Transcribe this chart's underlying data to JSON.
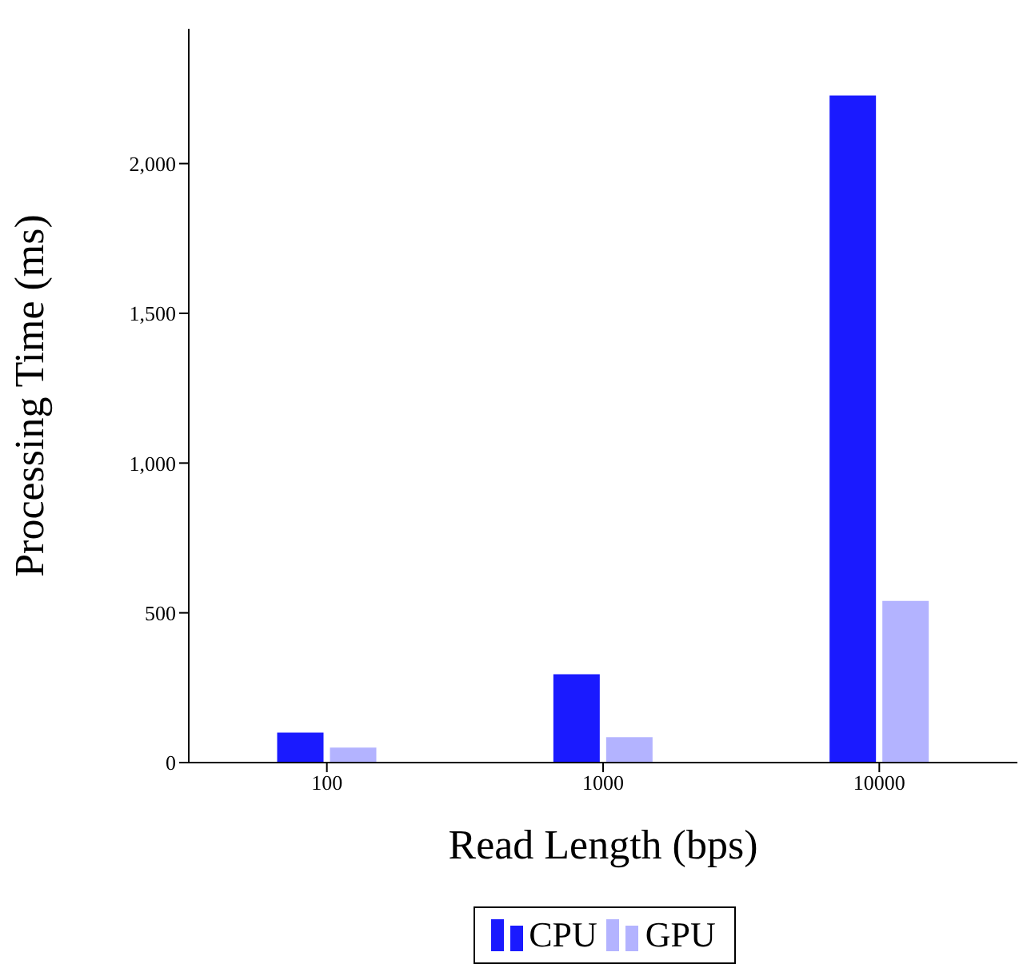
{
  "chart_data": {
    "type": "bar",
    "xlabel": "Read Length (bps)",
    "ylabel": "Processing Time (ms)",
    "categories": [
      "100",
      "1000",
      "10000"
    ],
    "series": [
      {
        "name": "CPU",
        "color": "#1a1aff",
        "values": [
          100,
          295,
          2227
        ]
      },
      {
        "name": "GPU",
        "color": "#b3b3ff",
        "values": [
          50,
          85,
          540
        ]
      }
    ],
    "ylim": [
      0,
      2450
    ],
    "yticks": [
      0,
      500,
      {
        "value": 1000,
        "label": "1,000"
      },
      {
        "value": 1500,
        "label": "1,500"
      },
      {
        "value": 2000,
        "label": "2,000"
      }
    ],
    "grid": false,
    "legend": "bottom"
  }
}
